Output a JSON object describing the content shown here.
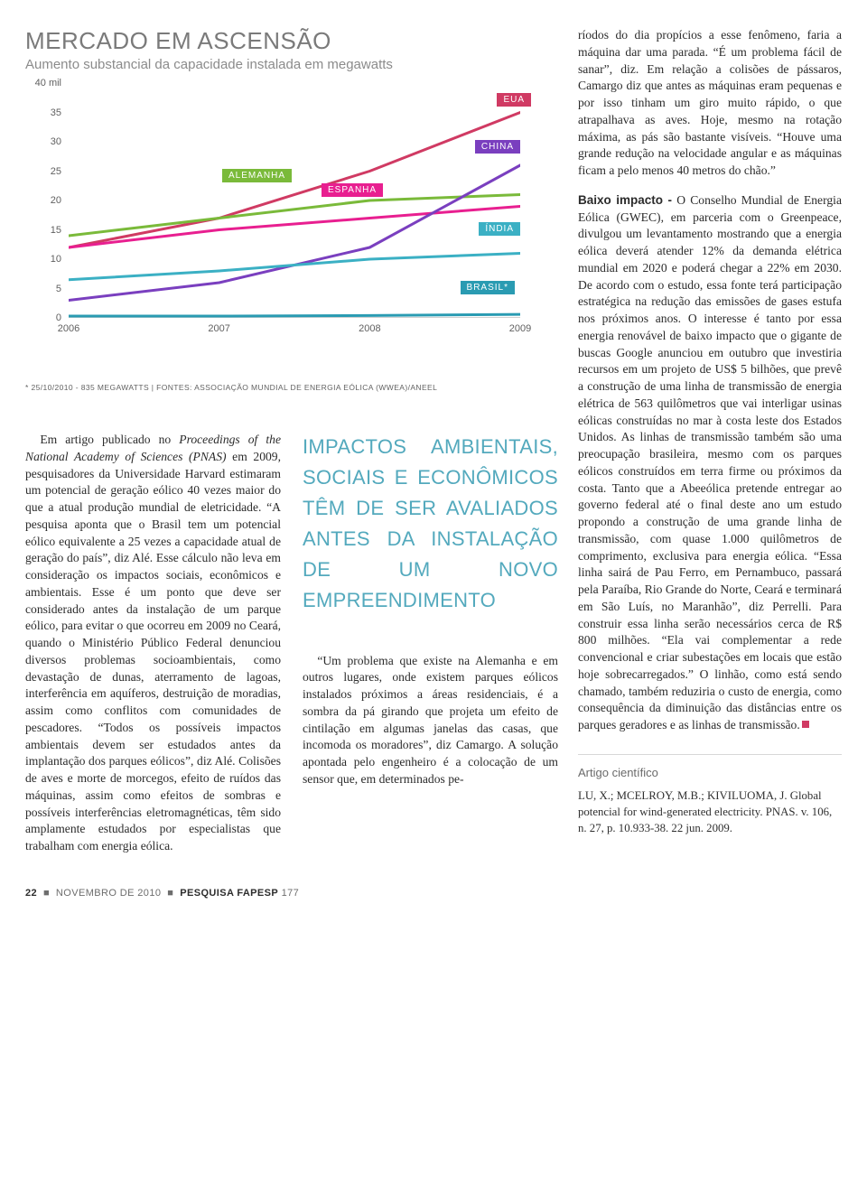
{
  "chart": {
    "title": "MERCADO EM ASCENSÃO",
    "subtitle": "Aumento substancial da capacidade instalada em megawatts",
    "type": "line",
    "background_color": "#ffffff",
    "title_color": "#7a7a7a",
    "subtitle_color": "#8b8b8b",
    "yaxis": {
      "min": 0,
      "max": 40,
      "step": 5,
      "top_label": "40 mil"
    },
    "ylabels": [
      "40 mil",
      "35",
      "30",
      "25",
      "20",
      "15",
      "10",
      "5",
      "0"
    ],
    "xaxis": {
      "categories": [
        "2006",
        "2007",
        "2008",
        "2009"
      ]
    },
    "axis_color": "#d0cfcf",
    "tick_color": "#bfbebe",
    "label_fontsize": 11,
    "label_color": "#606060",
    "series": [
      {
        "name": "EUA",
        "label": "EUA",
        "color": "#d03a63",
        "line_width": 3,
        "values": [
          12,
          17,
          25,
          35
        ]
      },
      {
        "name": "ALEMANHA",
        "label": "ALEMANHA",
        "color": "#7aba3a",
        "line_width": 3,
        "values": [
          14,
          17,
          20,
          21
        ]
      },
      {
        "name": "ESPANHA",
        "label": "ESPANHA",
        "color": "#e81f90",
        "line_width": 3,
        "values": [
          12,
          15,
          17,
          19
        ]
      },
      {
        "name": "CHINA",
        "label": "CHINA",
        "color": "#7a3fbf",
        "line_width": 3,
        "values": [
          3,
          6,
          12,
          26
        ]
      },
      {
        "name": "ÍNDIA",
        "label": "ÍNDIA",
        "color": "#3bb0c4",
        "line_width": 3,
        "values": [
          6.5,
          8,
          10,
          11
        ]
      },
      {
        "name": "BRASIL",
        "label": "BRASIL*",
        "color": "#2a9bb2",
        "line_width": 3,
        "values": [
          0.3,
          0.3,
          0.4,
          0.6
        ]
      }
    ],
    "tag_text_color": "#ffffff",
    "tag_fontsize": 10,
    "footnote": "* 25/10/2010 - 835 MEGAWATTS  |  FONTES: ASSOCIAÇÃO MUNDIAL DE ENERGIA EÓLICA (WWEA)/ANEEL",
    "footnote_color": "#626262"
  },
  "body_left_html": "Em artigo publicado no <em>Proceedings of the National Academy of Sciences (PNAS)</em> em 2009, pesquisadores da Universidade Harvard estimaram um potencial de geração eólico 40 vezes maior do que a atual produção mundial de eletricidade. “A pesquisa aponta que o Brasil tem um potencial eólico equivalente a 25 vezes a capacidade atual de geração do país”, diz Alé. Esse cálculo não leva em consideração os impactos sociais, econômicos e ambientais. Esse é um ponto que deve ser considerado antes da instalação de um parque eólico, para evitar o que ocorreu em 2009 no Ceará, quando o Ministério Público Federal denunciou diversos problemas socioambientais, como devastação de dunas, aterramento de lagoas, interferência em aquíferos, destruição de moradias, assim como conflitos com comunidades de pescadores. “Todos os possíveis impactos ambientais devem ser estudados antes da implantação dos parques eólicos”, diz Alé. Colisões de aves e morte de morcegos, efeito de ruídos das máquinas, assim como efeitos de sombras e possíveis interferências eletromagnéticas, têm sido amplamente estudados por especialistas que trabalham com energia eólica.",
  "pullquote": "IMPACTOS AMBIENTAIS, SOCIAIS E ECONÔMICOS TÊM DE SER AVALIADOS ANTES DA INSTALAÇÃO DE UM NOVO EMPREENDIMENTO",
  "pullquote_color": "#53a9bd",
  "body_mid": "“Um problema que existe na Alemanha e em outros lugares, onde existem parques eólicos instalados próximos a áreas residenciais, é a sombra da pá girando que projeta um efeito de cintilação em algumas janelas das casas, que incomoda os moradores”, diz Camargo. A solução apontada pelo engenheiro é a colocação de um sensor que, em determinados pe-",
  "body_right_1": "ríodos do dia propícios a esse fenômeno, faria a máquina dar uma parada. “É um problema fácil de sanar”, diz. Em relação a colisões de pássaros, Camargo diz que antes as máquinas eram pequenas e por isso tinham um giro muito rápido, o que atrapalhava as aves. Hoje, mesmo na rotação máxima, as pás são bastante visíveis. “Houve uma grande redução na velocidade angular e as máquinas ficam a pelo menos 40 metros do chão.”",
  "body_right_lead": "Baixo impacto -",
  "body_right_2": " O Conselho Mundial de Energia Eólica (GWEC), em parceria com o Greenpeace, divulgou um levantamento mostrando que a energia eólica deverá atender 12% da demanda elétrica mundial em 2020 e poderá chegar a 22% em 2030. De acordo com o estudo, essa fonte terá participação estratégica na redução das emissões de gases estufa nos próximos anos. O interesse é tanto por essa energia renovável de baixo impacto que o gigante de buscas Google anunciou em outubro que investiria recursos em um projeto de US$ 5 bilhões, que prevê a construção de uma linha de transmissão de energia elétrica de 563 quilômetros que vai interligar usinas eólicas construídas no mar à costa leste dos Estados Unidos. As linhas de transmissão também são uma preocupação brasileira, mesmo com os parques eólicos construídos em terra firme ou próximos da costa. Tanto que a Abeeólica pretende entregar ao governo federal até o final deste ano um estudo propondo a construção de uma grande linha de transmissão, com quase 1.000 quilômetros de comprimento, exclusiva para energia eólica. “Essa linha sairá de Pau Ferro, em Pernambuco, passará pela Paraíba, Rio Grande do Norte, Ceará e terminará em São Luís, no Maranhão”, diz Perrelli. Para construir essa linha serão necessários cerca de R$ 800 milhões. “Ela vai complementar a rede convencional e criar subestações em locais que estão hoje sobrecarregados.” O linhão, como está sendo chamado, também reduziria o custo de energia, como consequência da diminuição das distâncias entre os parques geradores e as linhas de transmissão.",
  "reference": {
    "heading": "Artigo científico",
    "text": "LU, X.; MCELROY, M.B.; KIVILUOMA, J. Global potencial for wind-generated electricity. PNAS. v. 106, n. 27, p. 10.933-38. 22 jun. 2009."
  },
  "footer": {
    "page": "22",
    "month": "NOVEMBRO DE 2010",
    "mag": "PESQUISA FAPESP",
    "issue": "177"
  }
}
